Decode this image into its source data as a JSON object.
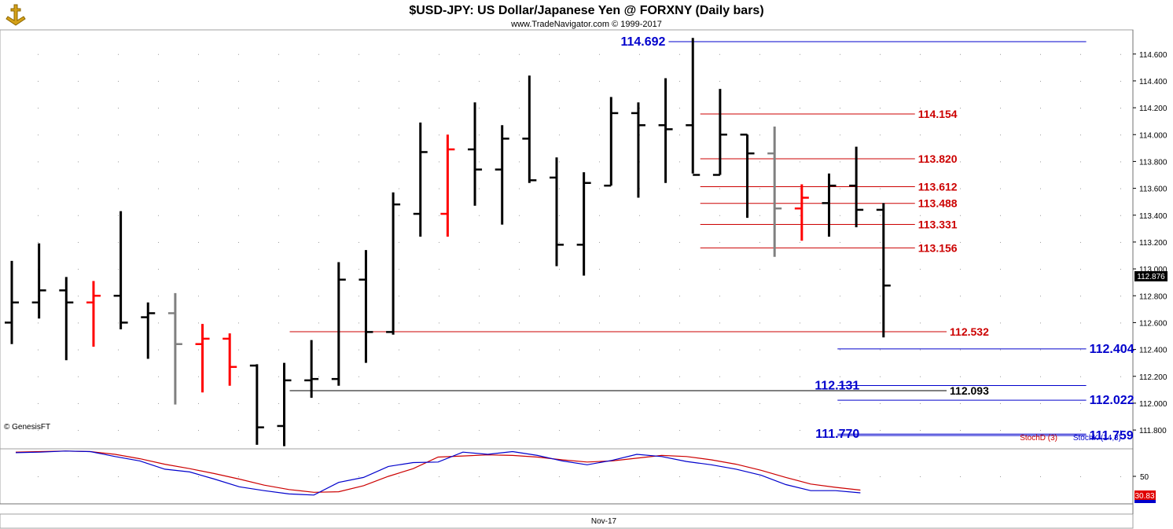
{
  "header": {
    "title": "$USD-JPY:  US Dollar/Japanese Yen @ FORXNY  (Daily bars)",
    "subtitle": "www.TradeNavigator.com © 1999-2017"
  },
  "credit": "© GenesisFT",
  "colors": {
    "up": "#000000",
    "down": "#ff0000",
    "neutral": "#808080",
    "blue_level": "#0000cc",
    "red_level": "#cc0000",
    "black_level": "#000000",
    "stoch_k": "#0000cc",
    "stoch_d": "#cc0000",
    "frame": "#a0a0a0"
  },
  "chart_data": [
    {
      "type": "ohlc",
      "title": "$USD-JPY:  US Dollar/Japanese Yen @ FORXNY  (Daily bars)",
      "ylim": [
        111.66,
        114.78
      ],
      "y_ticks": [
        "111.800",
        "112.000",
        "112.200",
        "112.400",
        "112.600",
        "112.800",
        "113.000",
        "113.200",
        "113.400",
        "113.600",
        "113.800",
        "114.000",
        "114.200",
        "114.400",
        "114.600"
      ],
      "x_label": "Nov-17",
      "last_price": "112.876",
      "bars": [
        {
          "o": 112.6,
          "h": 113.06,
          "l": 112.44,
          "c": 112.75,
          "color": "up"
        },
        {
          "o": 112.75,
          "h": 113.19,
          "l": 112.63,
          "c": 112.84,
          "color": "up"
        },
        {
          "o": 112.84,
          "h": 112.94,
          "l": 112.32,
          "c": 112.75,
          "color": "up"
        },
        {
          "o": 112.75,
          "h": 112.91,
          "l": 112.42,
          "c": 112.8,
          "color": "down"
        },
        {
          "o": 112.8,
          "h": 113.43,
          "l": 112.55,
          "c": 112.6,
          "color": "up"
        },
        {
          "o": 112.64,
          "h": 112.75,
          "l": 112.33,
          "c": 112.67,
          "color": "up"
        },
        {
          "o": 112.67,
          "h": 112.82,
          "l": 111.99,
          "c": 112.44,
          "color": "neutral"
        },
        {
          "o": 112.44,
          "h": 112.59,
          "l": 112.08,
          "c": 112.48,
          "color": "down"
        },
        {
          "o": 112.48,
          "h": 112.52,
          "l": 112.13,
          "c": 112.27,
          "color": "down"
        },
        {
          "o": 112.28,
          "h": 112.29,
          "l": 111.69,
          "c": 111.82,
          "color": "up"
        },
        {
          "o": 111.83,
          "h": 112.3,
          "l": 111.68,
          "c": 112.17,
          "color": "up"
        },
        {
          "o": 112.17,
          "h": 112.47,
          "l": 112.04,
          "c": 112.18,
          "color": "up"
        },
        {
          "o": 112.18,
          "h": 113.05,
          "l": 112.13,
          "c": 112.92,
          "color": "up"
        },
        {
          "o": 112.92,
          "h": 113.14,
          "l": 112.3,
          "c": 112.53,
          "color": "up"
        },
        {
          "o": 112.53,
          "h": 113.57,
          "l": 112.51,
          "c": 113.48,
          "color": "up"
        },
        {
          "o": 113.41,
          "h": 114.09,
          "l": 113.24,
          "c": 113.87,
          "color": "up"
        },
        {
          "o": 113.41,
          "h": 114.0,
          "l": 113.24,
          "c": 113.89,
          "color": "down"
        },
        {
          "o": 113.89,
          "h": 114.24,
          "l": 113.47,
          "c": 113.74,
          "color": "up"
        },
        {
          "o": 113.74,
          "h": 114.07,
          "l": 113.33,
          "c": 113.97,
          "color": "up"
        },
        {
          "o": 113.97,
          "h": 114.44,
          "l": 113.64,
          "c": 113.66,
          "color": "up"
        },
        {
          "o": 113.68,
          "h": 113.83,
          "l": 113.02,
          "c": 113.18,
          "color": "up"
        },
        {
          "o": 113.18,
          "h": 113.72,
          "l": 112.95,
          "c": 113.64,
          "color": "up"
        },
        {
          "o": 113.62,
          "h": 114.28,
          "l": 113.62,
          "c": 114.16,
          "color": "up"
        },
        {
          "o": 114.16,
          "h": 114.24,
          "l": 113.53,
          "c": 114.07,
          "color": "up"
        },
        {
          "o": 114.07,
          "h": 114.42,
          "l": 113.64,
          "c": 114.04,
          "color": "up"
        },
        {
          "o": 114.07,
          "h": 114.72,
          "l": 113.71,
          "c": 113.7,
          "color": "up"
        },
        {
          "o": 113.7,
          "h": 114.34,
          "l": 113.7,
          "c": 114.0,
          "color": "up"
        },
        {
          "o": 114.0,
          "h": 114.0,
          "l": 113.38,
          "c": 113.86,
          "color": "up"
        },
        {
          "o": 113.86,
          "h": 114.06,
          "l": 113.09,
          "c": 113.45,
          "color": "neutral"
        },
        {
          "o": 113.45,
          "h": 113.63,
          "l": 113.21,
          "c": 113.53,
          "color": "down"
        },
        {
          "o": 113.49,
          "h": 113.71,
          "l": 113.24,
          "c": 113.62,
          "color": "up"
        },
        {
          "o": 113.62,
          "h": 113.91,
          "l": 113.31,
          "c": 113.44,
          "color": "up"
        },
        {
          "o": 113.44,
          "h": 113.49,
          "l": 112.49,
          "c": 112.876,
          "color": "up"
        }
      ],
      "levels": [
        {
          "value": 114.692,
          "label": "114.692",
          "color": "blue_level",
          "x_from": 0.57,
          "x_to": 0.926,
          "label_pos": "left",
          "size": 16
        },
        {
          "value": 114.154,
          "label": "114.154",
          "color": "red_level",
          "x_from": 0.597,
          "x_to": 0.78,
          "label_pos": "right",
          "size": 14
        },
        {
          "value": 113.82,
          "label": "113.820",
          "color": "red_level",
          "x_from": 0.597,
          "x_to": 0.78,
          "label_pos": "right",
          "size": 14
        },
        {
          "value": 113.612,
          "label": "113.612",
          "color": "red_level",
          "x_from": 0.597,
          "x_to": 0.78,
          "label_pos": "right",
          "size": 14
        },
        {
          "value": 113.488,
          "label": "113.488",
          "color": "red_level",
          "x_from": 0.597,
          "x_to": 0.78,
          "label_pos": "right",
          "size": 14
        },
        {
          "value": 113.331,
          "label": "113.331",
          "color": "red_level",
          "x_from": 0.597,
          "x_to": 0.78,
          "label_pos": "right",
          "size": 14
        },
        {
          "value": 113.156,
          "label": "113.156",
          "color": "red_level",
          "x_from": 0.597,
          "x_to": 0.78,
          "label_pos": "right",
          "size": 14
        },
        {
          "value": 112.532,
          "label": "112.532",
          "color": "red_level",
          "x_from": 0.247,
          "x_to": 0.807,
          "label_pos": "right",
          "size": 14
        },
        {
          "value": 112.404,
          "label": "112.404",
          "color": "blue_level",
          "x_from": 0.714,
          "x_to": 0.926,
          "label_pos": "right",
          "size": 16
        },
        {
          "value": 112.131,
          "label": "112.131",
          "color": "blue_level",
          "x_from": 0.714,
          "x_to": 0.926,
          "label_pos": "leftmid",
          "size": 16
        },
        {
          "value": 112.093,
          "label": "112.093",
          "color": "black_level",
          "x_from": 0.247,
          "x_to": 0.807,
          "label_pos": "right",
          "size": 14
        },
        {
          "value": 112.022,
          "label": "112.022",
          "color": "blue_level",
          "x_from": 0.714,
          "x_to": 0.926,
          "label_pos": "right",
          "size": 16
        },
        {
          "value": 111.77,
          "label": "111.770",
          "color": "blue_level",
          "x_from": 0.714,
          "x_to": 0.926,
          "label_pos": "leftmid",
          "size": 16
        },
        {
          "value": 111.759,
          "label": "111.759",
          "color": "blue_level",
          "x_from": 0.714,
          "x_to": 0.926,
          "label_pos": "right",
          "size": 16
        }
      ]
    },
    {
      "type": "line",
      "title": "Stochastic",
      "ylim": [
        0,
        100
      ],
      "y_ticks": [
        "50"
      ],
      "series": [
        {
          "name": "StochD (3)",
          "color": "stoch_d",
          "values": [
            94,
            95,
            96,
            95,
            90,
            82,
            72,
            64,
            55,
            45,
            34,
            26,
            21,
            22,
            33,
            50,
            64,
            85,
            87,
            89,
            88,
            85,
            80,
            76,
            78,
            83,
            88,
            86,
            80,
            72,
            61,
            48,
            36,
            30,
            25
          ]
        },
        {
          "name": "StochK (14,3)",
          "color": "stoch_k",
          "values": [
            93,
            94,
            96,
            95,
            86,
            78,
            63,
            58,
            45,
            31,
            24,
            18,
            16,
            39,
            48,
            68,
            75,
            76,
            94,
            90,
            95,
            88,
            78,
            71,
            79,
            90,
            86,
            77,
            71,
            63,
            52,
            35,
            24,
            24,
            20
          ]
        }
      ],
      "last_value": "30.83"
    }
  ]
}
